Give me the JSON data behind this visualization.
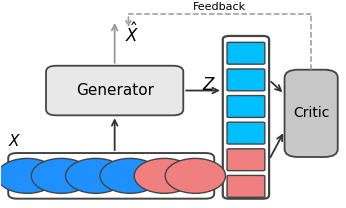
{
  "blue_circle_color": "#1E90FF",
  "pink_circle_color": "#F08080",
  "blue_square_color": "#00BFFF",
  "pink_square_color": "#F08080",
  "box_bg_light": "#E8E8E8",
  "box_bg_critic": "#C8C8C8",
  "box_edge": "#444444",
  "fig_bg": "#FFFFFF",
  "n_blue_circles": 4,
  "n_pink_circles": 2,
  "n_blue_squares": 4,
  "n_pink_squares": 2,
  "generator_label": "Generator",
  "critic_label": "Critic",
  "feedback_label": "Feedback",
  "x_label": "$X$",
  "z_label": "$Z$",
  "xhat_label": "$\\hat{X}$",
  "arrow_color": "#333333",
  "gray_arrow_color": "#999999",
  "dash_color": "#999999"
}
